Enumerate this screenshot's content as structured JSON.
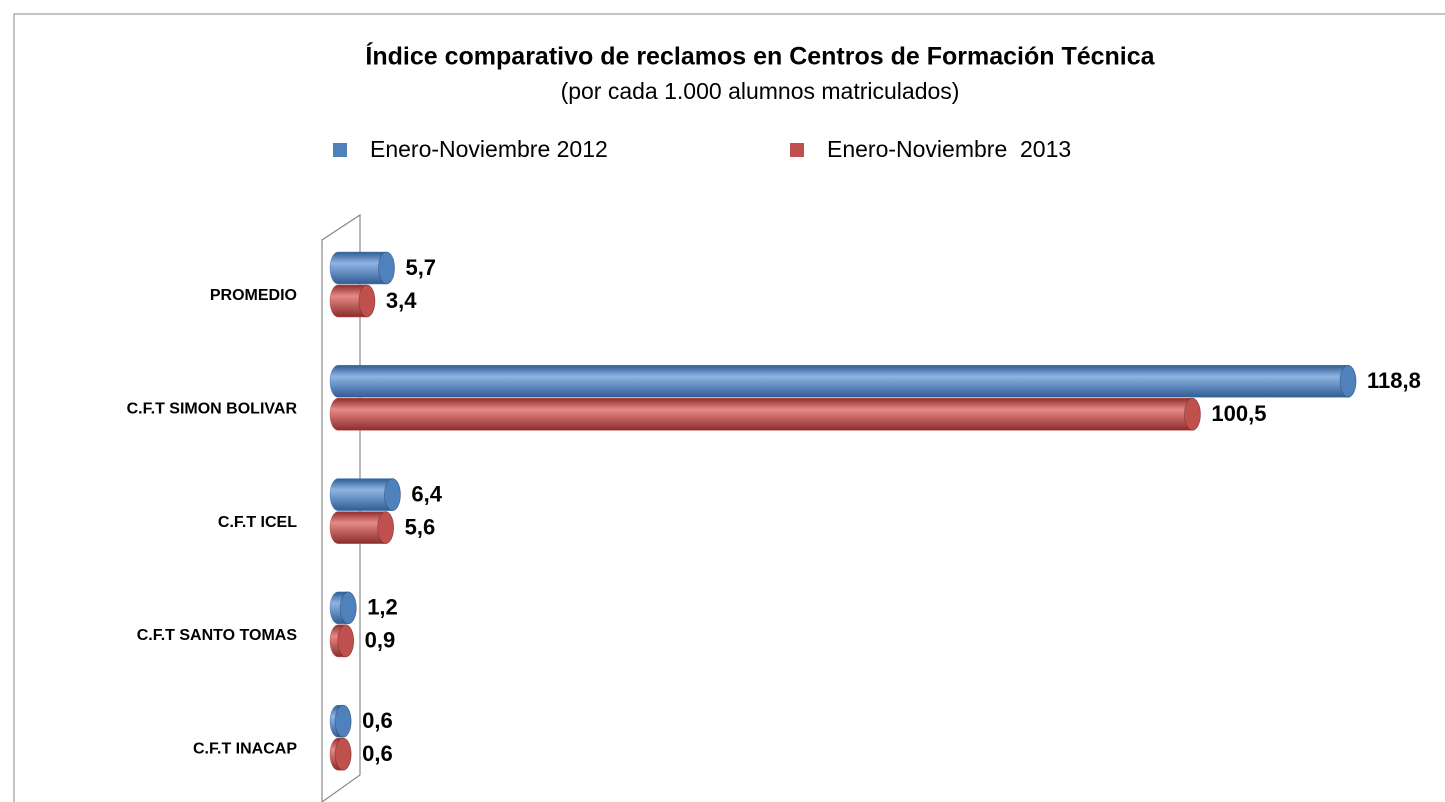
{
  "chart_data": {
    "type": "bar",
    "orientation": "horizontal",
    "title": "Índice comparativo de reclamos en Centros de Formación Técnica",
    "subtitle": "(por cada 1.000 alumnos matriculados)",
    "categories": [
      "PROMEDIO",
      "C.F.T SIMON BOLIVAR",
      "C.F.T ICEL",
      "C.F.T SANTO TOMAS",
      "C.F.T INACAP"
    ],
    "series": [
      {
        "name": "Enero-Noviembre 2012",
        "color": "#4f81bd",
        "values": [
          5.7,
          118.8,
          6.4,
          1.2,
          0.6
        ],
        "value_labels": [
          "5,7",
          "118,8",
          "6,4",
          "1,2",
          "0,6"
        ]
      },
      {
        "name": "Enero-Noviembre  2013",
        "color": "#c0504d",
        "values": [
          3.4,
          100.5,
          5.6,
          0.9,
          0.6
        ],
        "value_labels": [
          "3,4",
          "100,5",
          "5,6",
          "0,9",
          "0,6"
        ]
      }
    ]
  }
}
